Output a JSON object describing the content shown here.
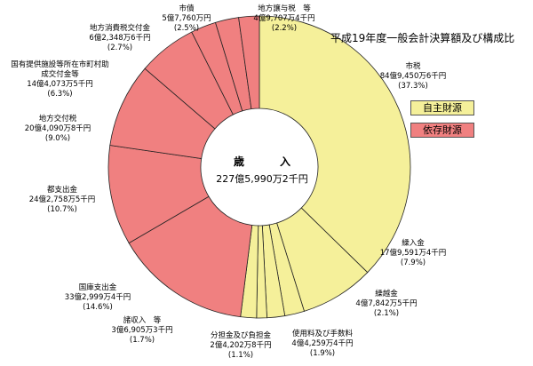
{
  "chart_data": {
    "type": "pie",
    "title": "平成19年度一般会計決算額及び構成比",
    "center_label": {
      "line1": "歳　入",
      "line2": "227億5,990万2千円"
    },
    "legend": [
      {
        "label": "自主財源",
        "color": "#f5f09a"
      },
      {
        "label": "依存財源",
        "color": "#f08080"
      }
    ],
    "slices": [
      {
        "name": "市税",
        "amount": "84億9,450万6千円",
        "percent": 37.3,
        "percent_label": "(37.3%)",
        "group": "自主財源"
      },
      {
        "name": "繰入金",
        "amount": "17億9,591万4千円",
        "percent": 7.9,
        "percent_label": "(7.9%)",
        "group": "自主財源"
      },
      {
        "name": "繰越金",
        "amount": "4億7,842万5千円",
        "percent": 2.1,
        "percent_label": "(2.1%)",
        "group": "自主財源"
      },
      {
        "name": "使用料及び手数料",
        "amount": "4億4,259万4千円",
        "percent": 1.9,
        "percent_label": "(1.9%)",
        "group": "自主財源"
      },
      {
        "name": "分担金及び負担金",
        "amount": "2億4,202万8千円",
        "percent": 1.1,
        "percent_label": "(1.1%)",
        "group": "自主財源"
      },
      {
        "name": "諸収入　等",
        "amount": "3億6,905万3千円",
        "percent": 1.7,
        "percent_label": "(1.7%)",
        "group": "自主財源"
      },
      {
        "name": "国庫支出金",
        "amount": "33億2,999万4千円",
        "percent": 14.6,
        "percent_label": "(14.6%)",
        "group": "依存財源"
      },
      {
        "name": "都支出金",
        "amount": "24億2,758万5千円",
        "percent": 10.7,
        "percent_label": "(10.7%)",
        "group": "依存財源"
      },
      {
        "name": "地方交付税",
        "amount": "20億4,090万8千円",
        "percent": 9.0,
        "percent_label": "(9.0%)",
        "group": "依存財源"
      },
      {
        "name": "国有提供施設等所在市町村助成交付金等",
        "name_lines": [
          "国有提供施設等所在市町村助",
          "成交付金等"
        ],
        "amount": "14億4,073万5千円",
        "percent": 6.3,
        "percent_label": "(6.3%)",
        "group": "依存財源"
      },
      {
        "name": "地方消費税交付金",
        "amount": "6億2,348万6千円",
        "percent": 2.7,
        "percent_label": "(2.7%)",
        "group": "依存財源"
      },
      {
        "name": "市債",
        "amount": "5億7,760万円",
        "percent": 2.5,
        "percent_label": "(2.5%)",
        "group": "依存財源"
      },
      {
        "name": "地方譲与税　等",
        "amount": "4億9,707万4千円",
        "percent": 2.2,
        "percent_label": "(2.2%)",
        "group": "依存財源"
      }
    ]
  }
}
